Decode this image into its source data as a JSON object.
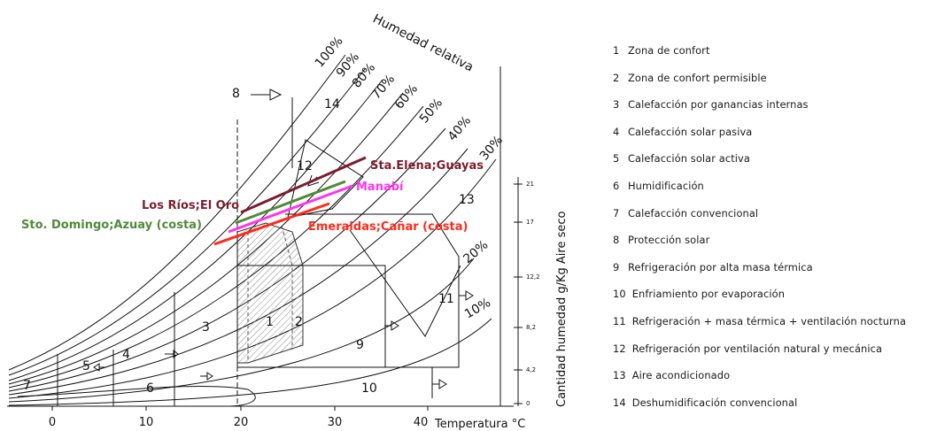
{
  "chart": {
    "humidity_title": "Humedad relativa",
    "rh_labels": [
      "100%",
      "90%",
      "80%",
      "70%",
      "60%",
      "50%",
      "40%",
      "30%",
      "20%",
      "10%"
    ],
    "x_ticks": [
      "0",
      "10",
      "20",
      "30",
      "40"
    ],
    "x_axis_label": "Temperatura °C",
    "y_axis_label": "Cantidad humedad g/Kg Aire seco",
    "y_ticks": [
      "21",
      "17",
      "12,2",
      "8,2",
      "4,2",
      "0"
    ],
    "zone_numbers": {
      "z1": "1",
      "z2": "2",
      "z3": "3",
      "z4": "4",
      "z5": "5",
      "z6": "6",
      "z7": "7",
      "z8": "8",
      "z9": "9",
      "z10": "10",
      "z11": "11",
      "z12": "12",
      "z13": "13",
      "z14": "14"
    },
    "regions": [
      {
        "label": "Sta.Elena;Guayas",
        "color": "#7b1d2e"
      },
      {
        "label": "Manabí",
        "color": "#ff33ee"
      },
      {
        "label": "Los Ríos;El Oro",
        "color": "#7b1d2e"
      },
      {
        "label": "Sto. Domingo;Azuay (costa)",
        "color": "#4f8a3a"
      },
      {
        "label": "Emeraldas;Cañar (costa)",
        "color": "#ff2a1a"
      }
    ],
    "region_line_colors": [
      "#7b1d2e",
      "#4f8a3a",
      "#ff33ee",
      "#ff2a1a"
    ]
  },
  "legend": [
    {
      "num": "1",
      "text": "Zona de confort"
    },
    {
      "num": "2",
      "text": "Zona de confort permisible"
    },
    {
      "num": "3",
      "text": "Calefacción por ganancias internas"
    },
    {
      "num": "4",
      "text": "Calefacción solar pasiva"
    },
    {
      "num": "5",
      "text": "Calefacción solar activa"
    },
    {
      "num": "6",
      "text": "Humidificación"
    },
    {
      "num": "7",
      "text": "Calefacción convencional"
    },
    {
      "num": "8",
      "text": "Protección solar"
    },
    {
      "num": "9",
      "text": "Refrigeración por alta masa térmica"
    },
    {
      "num": "10",
      "text": "Enfriamiento por evaporación"
    },
    {
      "num": "11",
      "text": "Refrigeración + masa térmica + ventilación nocturna"
    },
    {
      "num": "12",
      "text": "Refrigeración por ventilación natural y mecánica"
    },
    {
      "num": "13",
      "text": "Aire acondicionado"
    },
    {
      "num": "14",
      "text": "Deshumidificación convencional"
    }
  ]
}
